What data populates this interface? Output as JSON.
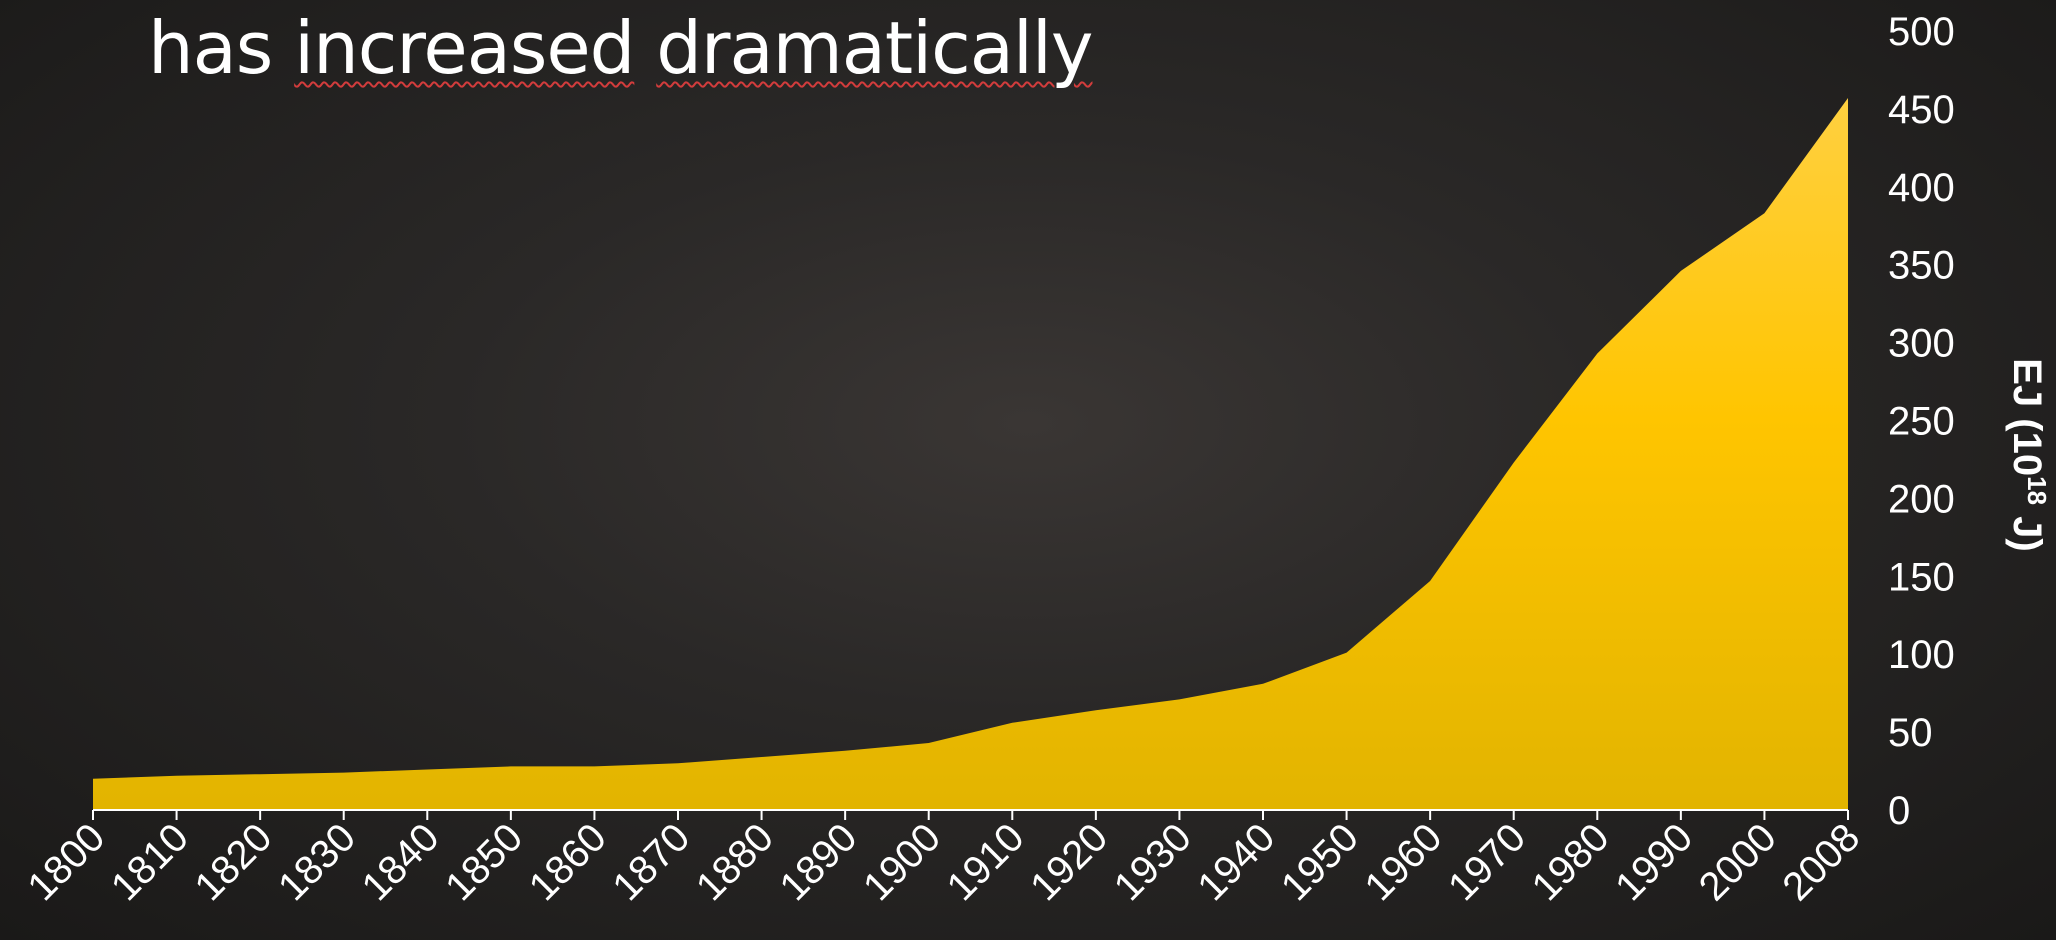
{
  "title": {
    "word1": "has",
    "word2": "increased",
    "word3": "dramatically"
  },
  "chart_data": {
    "type": "area",
    "title": "has increased dramatically",
    "ylabel_main": "EJ (10",
    "ylabel_sup": "18",
    "ylabel_end": " J)",
    "x": [
      "1800",
      "1810",
      "1820",
      "1830",
      "1840",
      "1850",
      "1860",
      "1870",
      "1880",
      "1890",
      "1900",
      "1910",
      "1920",
      "1930",
      "1940",
      "1950",
      "1960",
      "1970",
      "1980",
      "1990",
      "2000",
      "2008"
    ],
    "values": [
      20,
      22,
      23,
      24,
      26,
      28,
      28,
      30,
      34,
      38,
      43,
      56,
      64,
      71,
      81,
      101,
      147,
      223,
      293,
      346,
      383,
      457
    ],
    "ylim": [
      0,
      500
    ],
    "yticks": [
      0,
      50,
      100,
      150,
      200,
      250,
      300,
      350,
      400,
      450,
      500
    ],
    "grid": false,
    "legend": "none",
    "colors": {
      "fill_top": "#ffd040",
      "fill_mid": "#ffc500",
      "fill_bottom": "#e2b400",
      "axis": "#ffffff",
      "text": "#ffffff",
      "background": "#2a2827"
    }
  }
}
